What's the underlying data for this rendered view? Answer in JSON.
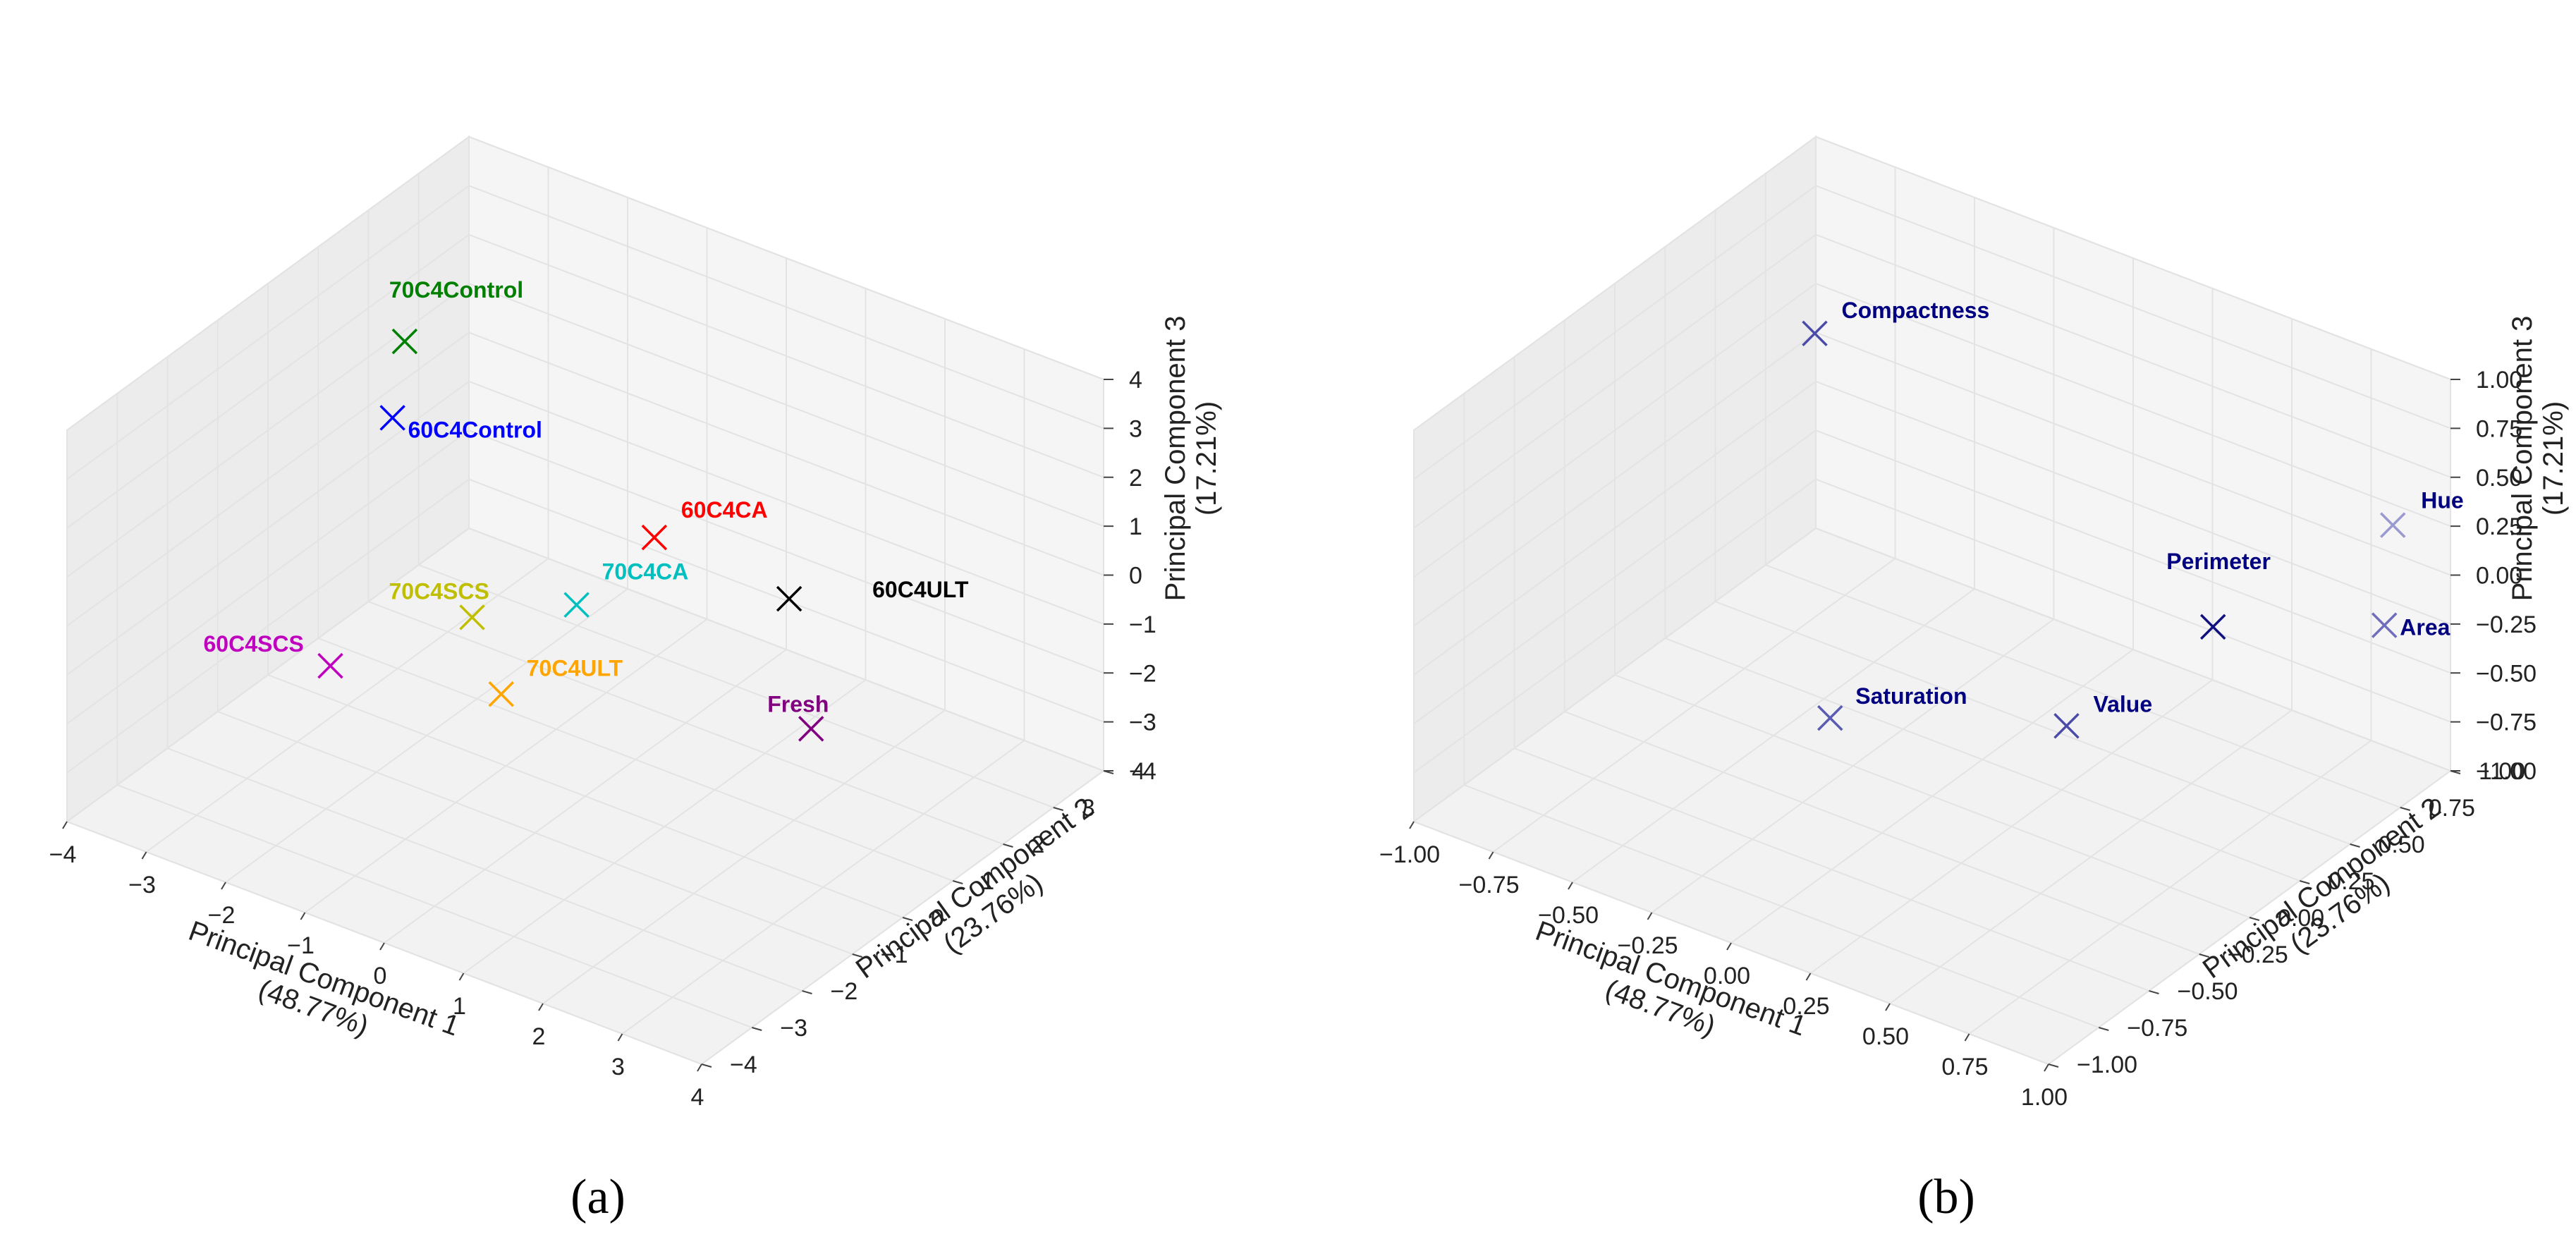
{
  "panels": {
    "a": {
      "label": "(a)"
    },
    "b": {
      "label": "(b)"
    }
  },
  "chart_data": [
    {
      "type": "scatter",
      "title": "",
      "xlabel": "Principal Component 1\n(48.77%)",
      "ylabel": "Principal Component 2\n(23.76%)",
      "zlabel": "Principal Component 3\n(17.21%)",
      "xlim": [
        -4,
        4
      ],
      "ylim": [
        -4,
        4
      ],
      "zlim": [
        -4,
        4
      ],
      "xticks": [
        "−4",
        "−3",
        "−2",
        "−1",
        "0",
        "1",
        "2",
        "3",
        "4"
      ],
      "yticks": [
        "−4",
        "−3",
        "−2",
        "−1",
        "0",
        "1",
        "2",
        "3",
        "4"
      ],
      "zticks": [
        "−4",
        "−3",
        "−2",
        "−1",
        "0",
        "1",
        "2",
        "3",
        "4"
      ],
      "marker": "x",
      "points": [
        {
          "name": "70C4Control",
          "x": -3.1,
          "y": 1.3,
          "z": 2.4,
          "color": "#008000"
        },
        {
          "name": "60C4Control",
          "x": -3.0,
          "y": 0.9,
          "z": 1.2,
          "color": "#0000ff"
        },
        {
          "name": "60C4CA",
          "x": 0.3,
          "y": 0.9,
          "z": 0.8,
          "color": "#ff0000"
        },
        {
          "name": "60C4ULT",
          "x": 2.0,
          "y": 0.9,
          "z": 0.6,
          "color": "#000000"
        },
        {
          "name": "70C4CA",
          "x": -0.3,
          "y": 0.3,
          "z": -0.5,
          "color": "#00bfbf"
        },
        {
          "name": "70C4SCS",
          "x": -1.3,
          "y": -0.2,
          "z": -1.0,
          "color": "#bfbf00"
        },
        {
          "name": "70C4ULT",
          "x": -0.3,
          "y": -1.2,
          "z": -1.2,
          "color": "#ffa500"
        },
        {
          "name": "60C4SCS",
          "x": -2.2,
          "y": -1.6,
          "z": -1.5,
          "color": "#bf00bf"
        },
        {
          "name": "Fresh",
          "x": 3.1,
          "y": -0.4,
          "z": -0.4,
          "color": "#800080"
        }
      ]
    },
    {
      "type": "scatter",
      "title": "",
      "xlabel": "Principal Component 1\n(48.77%)",
      "ylabel": "Principal Component 2\n(23.76%)",
      "zlabel": "Principal Component 3\n(17.21%)",
      "xlim": [
        -1,
        1
      ],
      "ylim": [
        -1,
        1
      ],
      "zlim": [
        -1,
        1
      ],
      "xticks": [
        "−1.00",
        "−0.75",
        "−0.50",
        "−0.25",
        "0.00",
        "0.25",
        "0.50",
        "0.75",
        "1.00"
      ],
      "yticks": [
        "−1.00",
        "−0.75",
        "−0.50",
        "−0.25",
        "0.00",
        "0.25",
        "0.50",
        "0.75",
        "1.00"
      ],
      "zticks": [
        "−1.00",
        "−0.75",
        "−0.50",
        "−0.25",
        "0.00",
        "0.25",
        "0.50",
        "0.75",
        "1.00"
      ],
      "marker": "x",
      "points": [
        {
          "name": "Compactness",
          "x": -0.75,
          "y": 0.6,
          "z": 0.45,
          "color": "#4a4aa8"
        },
        {
          "name": "Perimeter",
          "x": 0.6,
          "y": 0.45,
          "z": -0.1,
          "color": "#101080"
        },
        {
          "name": "Hue",
          "x": 0.85,
          "y": 0.95,
          "z": 0.2,
          "color": "#9a9ad0"
        },
        {
          "name": "Area",
          "x": 0.95,
          "y": 0.75,
          "z": -0.1,
          "color": "#6e6ebc"
        },
        {
          "name": "Value",
          "x": 0.55,
          "y": -0.2,
          "z": -0.15,
          "color": "#4a4aa8"
        },
        {
          "name": "Saturation",
          "x": -0.1,
          "y": -0.35,
          "z": -0.4,
          "color": "#5b5bb2"
        }
      ],
      "label_color": "#000080"
    }
  ]
}
